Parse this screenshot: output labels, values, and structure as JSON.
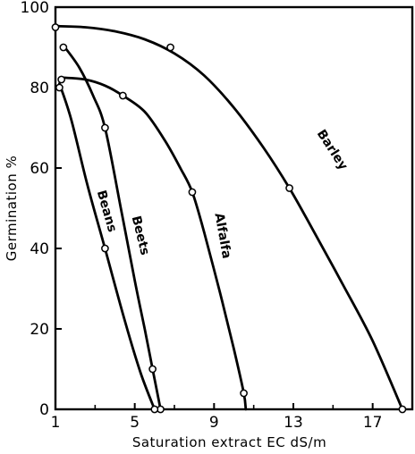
{
  "chart_data": {
    "type": "line",
    "title": "",
    "xlabel": "Saturation extract EC dS/m",
    "ylabel": "Germination %",
    "xlim": [
      1,
      19
    ],
    "ylim": [
      0,
      100
    ],
    "xticks": [
      1,
      5,
      9,
      13,
      17
    ],
    "yticks": [
      0,
      20,
      40,
      60,
      80,
      100
    ],
    "grid": false,
    "legend": "none",
    "series": [
      {
        "name": "Barley",
        "points": [
          [
            1,
            95
          ],
          [
            6.8,
            90
          ],
          [
            12.8,
            55
          ],
          [
            18.5,
            0
          ]
        ],
        "curve": [
          [
            1,
            95.3
          ],
          [
            2.5,
            95
          ],
          [
            4,
            94
          ],
          [
            5.5,
            92
          ],
          [
            7,
            88.5
          ],
          [
            8.5,
            83
          ],
          [
            10,
            75
          ],
          [
            11.5,
            65
          ],
          [
            12.8,
            55
          ],
          [
            14,
            44.5
          ],
          [
            15.5,
            31
          ],
          [
            17,
            17
          ],
          [
            18.5,
            0
          ]
        ]
      },
      {
        "name": "Alfalfa",
        "points": [
          [
            1.3,
            82
          ],
          [
            4.4,
            78
          ],
          [
            7.9,
            54
          ],
          [
            10.5,
            4
          ]
        ],
        "curve": [
          [
            1.3,
            82.5
          ],
          [
            2.5,
            82
          ],
          [
            3.5,
            80.5
          ],
          [
            4.4,
            78
          ],
          [
            5.5,
            74
          ],
          [
            6.5,
            67
          ],
          [
            7.3,
            60
          ],
          [
            7.9,
            54
          ],
          [
            8.5,
            44
          ],
          [
            9.3,
            29
          ],
          [
            10,
            15
          ],
          [
            10.5,
            4
          ],
          [
            10.6,
            0
          ]
        ]
      },
      {
        "name": "Beets",
        "points": [
          [
            1.4,
            90
          ],
          [
            3.5,
            70
          ],
          [
            5.9,
            10
          ],
          [
            6.3,
            0
          ]
        ],
        "curve": [
          [
            1.4,
            90.5
          ],
          [
            2.2,
            85
          ],
          [
            2.9,
            78
          ],
          [
            3.5,
            70
          ],
          [
            4.3,
            50
          ],
          [
            5,
            32
          ],
          [
            5.5,
            20
          ],
          [
            5.9,
            10
          ],
          [
            6.3,
            0
          ]
        ]
      },
      {
        "name": "Beans",
        "points": [
          [
            1.2,
            80
          ],
          [
            3.5,
            40
          ],
          [
            6.0,
            0
          ]
        ],
        "curve": [
          [
            1.2,
            81
          ],
          [
            1.8,
            72
          ],
          [
            2.6,
            56
          ],
          [
            3.5,
            40
          ],
          [
            4.5,
            22
          ],
          [
            5.3,
            9
          ],
          [
            6.0,
            0
          ]
        ]
      }
    ],
    "annotations": [
      "Barley",
      "Alfalfa",
      "Beets",
      "Beans"
    ]
  }
}
